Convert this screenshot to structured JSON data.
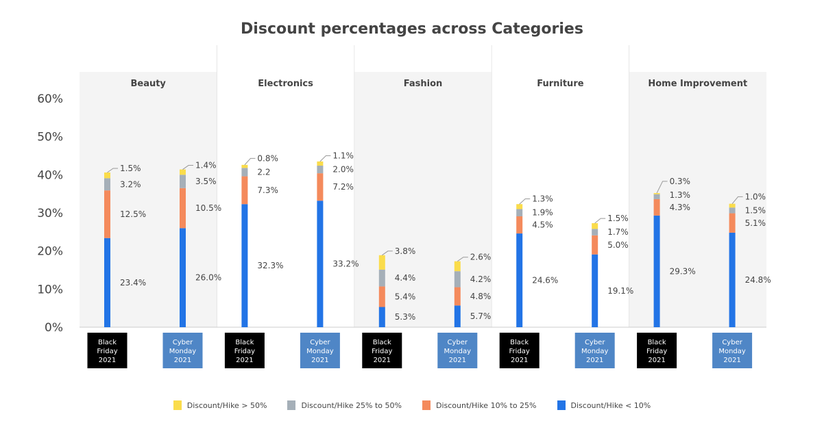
{
  "chart_data": {
    "type": "bar",
    "stacked": true,
    "title": "Discount percentages across Categories",
    "ylim": [
      0,
      60
    ],
    "yticks": [
      "0%",
      "10%",
      "20%",
      "30%",
      "40%",
      "50%",
      "60%"
    ],
    "panels": [
      "Beauty",
      "Electronics",
      "Fashion",
      "Furniture",
      "Home Improvement"
    ],
    "sale_events": [
      {
        "line1": "Black",
        "line2": "Friday",
        "line3": "2021",
        "color": "#000000"
      },
      {
        "line1": "Cyber",
        "line2": "Monday",
        "line3": "2021",
        "color": "#4f86c6"
      }
    ],
    "series": [
      {
        "name": "Discount/Hike < 10%",
        "color": "#2274e6"
      },
      {
        "name": "Discount/Hike 10% to 25%",
        "color": "#f48a5c"
      },
      {
        "name": "Discount/Hike 25% to 50%",
        "color": "#a5afb8"
      },
      {
        "name": "Discount/Hike > 50%",
        "color": "#fadc4b"
      }
    ],
    "bars": [
      {
        "panel": "Beauty",
        "event": "Black Friday 2021",
        "values": [
          23.4,
          12.5,
          3.2,
          1.5
        ],
        "labels": [
          "23.4%",
          "12.5%",
          "3.2%",
          "1.5%"
        ]
      },
      {
        "panel": "Beauty",
        "event": "Cyber Monday 2021",
        "values": [
          26.0,
          10.5,
          3.5,
          1.4
        ],
        "labels": [
          "26.0%",
          "10.5%",
          "3.5%",
          "1.4%"
        ]
      },
      {
        "panel": "Electronics",
        "event": "Black Friday 2021",
        "values": [
          32.3,
          7.3,
          2.2,
          0.8
        ],
        "labels": [
          "32.3%",
          "7.3%",
          "2.2",
          "0.8%"
        ]
      },
      {
        "panel": "Electronics",
        "event": "Cyber Monday 2021",
        "values": [
          33.2,
          7.2,
          2.0,
          1.1
        ],
        "labels": [
          "33.2%",
          "7.2%",
          "2.0%",
          "1.1%"
        ]
      },
      {
        "panel": "Fashion",
        "event": "Black Friday 2021",
        "values": [
          5.3,
          5.4,
          4.4,
          3.8
        ],
        "labels": [
          "5.3%",
          "5.4%",
          "4.4%",
          "3.8%"
        ]
      },
      {
        "panel": "Fashion",
        "event": "Cyber Monday 2021",
        "values": [
          5.7,
          4.8,
          4.2,
          2.6
        ],
        "labels": [
          "5.7%",
          "4.8%",
          "4.2%",
          "2.6%"
        ]
      },
      {
        "panel": "Furniture",
        "event": "Black Friday 2021",
        "values": [
          24.6,
          4.5,
          1.9,
          1.3
        ],
        "labels": [
          "24.6%",
          "4.5%",
          "1.9%",
          "1.3%"
        ]
      },
      {
        "panel": "Furniture",
        "event": "Cyber Monday 2021",
        "values": [
          19.1,
          5.0,
          1.7,
          1.5
        ],
        "labels": [
          "19.1%",
          "5.0%",
          "1.7%",
          "1.5%"
        ]
      },
      {
        "panel": "Home Improvement",
        "event": "Black Friday 2021",
        "values": [
          29.3,
          4.3,
          1.3,
          0.3
        ],
        "labels": [
          "29.3%",
          "4.3%",
          "1.3%",
          "0.3%"
        ]
      },
      {
        "panel": "Home Improvement",
        "event": "Cyber Monday 2021",
        "values": [
          24.8,
          5.1,
          1.5,
          1.0
        ],
        "labels": [
          "24.8%",
          "5.1%",
          "1.5%",
          "1.0%"
        ]
      }
    ],
    "legend_order": [
      "Discount/Hike > 50%",
      "Discount/Hike 25% to 50%",
      "Discount/Hike 10% to 25%",
      "Discount/Hike < 10%"
    ],
    "legend_position": "bottom-center",
    "grid": false
  }
}
